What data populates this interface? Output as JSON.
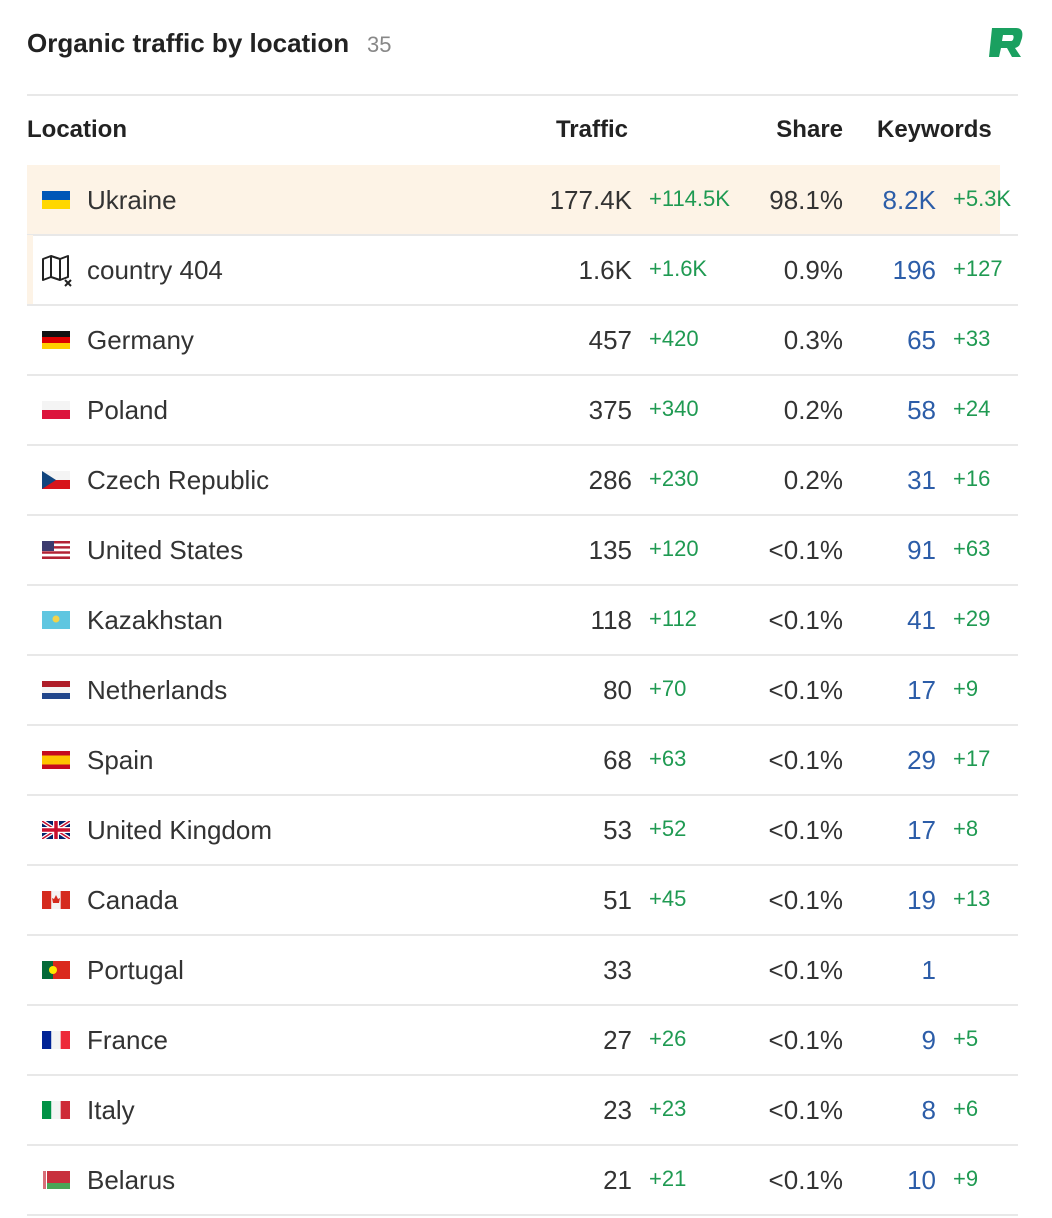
{
  "header": {
    "title": "Organic traffic by location",
    "count": "35"
  },
  "table": {
    "columns": [
      "Location",
      "Traffic",
      "Share",
      "Keywords"
    ],
    "rows": [
      {
        "location": "Ukraine",
        "traffic": "177.4K",
        "traffic_change": "+114.5K",
        "share": "98.1%",
        "keywords": "8.2K",
        "keywords_change": "+5.3K"
      },
      {
        "location": "country 404",
        "traffic": "1.6K",
        "traffic_change": "+1.6K",
        "share": "0.9%",
        "keywords": "196",
        "keywords_change": "+127"
      },
      {
        "location": "Germany",
        "traffic": "457",
        "traffic_change": "+420",
        "share": "0.3%",
        "keywords": "65",
        "keywords_change": "+33"
      },
      {
        "location": "Poland",
        "traffic": "375",
        "traffic_change": "+340",
        "share": "0.2%",
        "keywords": "58",
        "keywords_change": "+24"
      },
      {
        "location": "Czech Republic",
        "traffic": "286",
        "traffic_change": "+230",
        "share": "0.2%",
        "keywords": "31",
        "keywords_change": "+16"
      },
      {
        "location": "United States",
        "traffic": "135",
        "traffic_change": "+120",
        "share": "<0.1%",
        "keywords": "91",
        "keywords_change": "+63"
      },
      {
        "location": "Kazakhstan",
        "traffic": "118",
        "traffic_change": "+112",
        "share": "<0.1%",
        "keywords": "41",
        "keywords_change": "+29"
      },
      {
        "location": "Netherlands",
        "traffic": "80",
        "traffic_change": "+70",
        "share": "<0.1%",
        "keywords": "17",
        "keywords_change": "+9"
      },
      {
        "location": "Spain",
        "traffic": "68",
        "traffic_change": "+63",
        "share": "<0.1%",
        "keywords": "29",
        "keywords_change": "+17"
      },
      {
        "location": "United Kingdom",
        "traffic": "53",
        "traffic_change": "+52",
        "share": "<0.1%",
        "keywords": "17",
        "keywords_change": "+8"
      },
      {
        "location": "Canada",
        "traffic": "51",
        "traffic_change": "+45",
        "share": "<0.1%",
        "keywords": "19",
        "keywords_change": "+13"
      },
      {
        "location": "Portugal",
        "traffic": "33",
        "share": "<0.1%",
        "keywords": "1"
      },
      {
        "location": "France",
        "traffic": "27",
        "traffic_change": "+26",
        "share": "<0.1%",
        "keywords": "9",
        "keywords_change": "+5"
      },
      {
        "location": "Italy",
        "traffic": "23",
        "traffic_change": "+23",
        "share": "<0.1%",
        "keywords": "8",
        "keywords_change": "+6"
      },
      {
        "location": "Belarus",
        "traffic": "21",
        "traffic_change": "+21",
        "share": "<0.1%",
        "keywords": "10",
        "keywords_change": "+9"
      }
    ]
  }
}
